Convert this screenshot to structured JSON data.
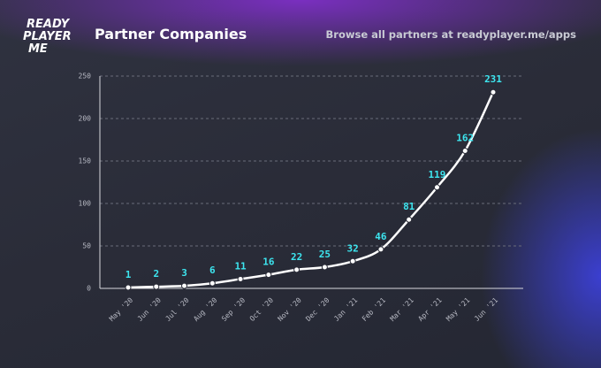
{
  "header": {
    "logo": [
      "READY",
      "PLAYER",
      "ME"
    ],
    "link_text": "Browse all partners at readyplayer.me/apps"
  },
  "chart_data": {
    "type": "line",
    "title": "Partner Companies",
    "categories": [
      "May '20",
      "Jun '20",
      "Jul '20",
      "Aug '20",
      "Sep '20",
      "Oct '20",
      "Nov '20",
      "Dec '20",
      "Jan '21",
      "Feb '21",
      "Mar '21",
      "Apr '21",
      "May '21",
      "Jun '21"
    ],
    "values": [
      1,
      2,
      3,
      6,
      11,
      16,
      22,
      25,
      32,
      46,
      81,
      119,
      162,
      231
    ],
    "color": "#ffffff",
    "label_color": "#3de6f0",
    "ylim": [
      0,
      250
    ],
    "yticks": [
      0,
      50,
      100,
      150,
      200,
      250
    ],
    "grid": true
  }
}
